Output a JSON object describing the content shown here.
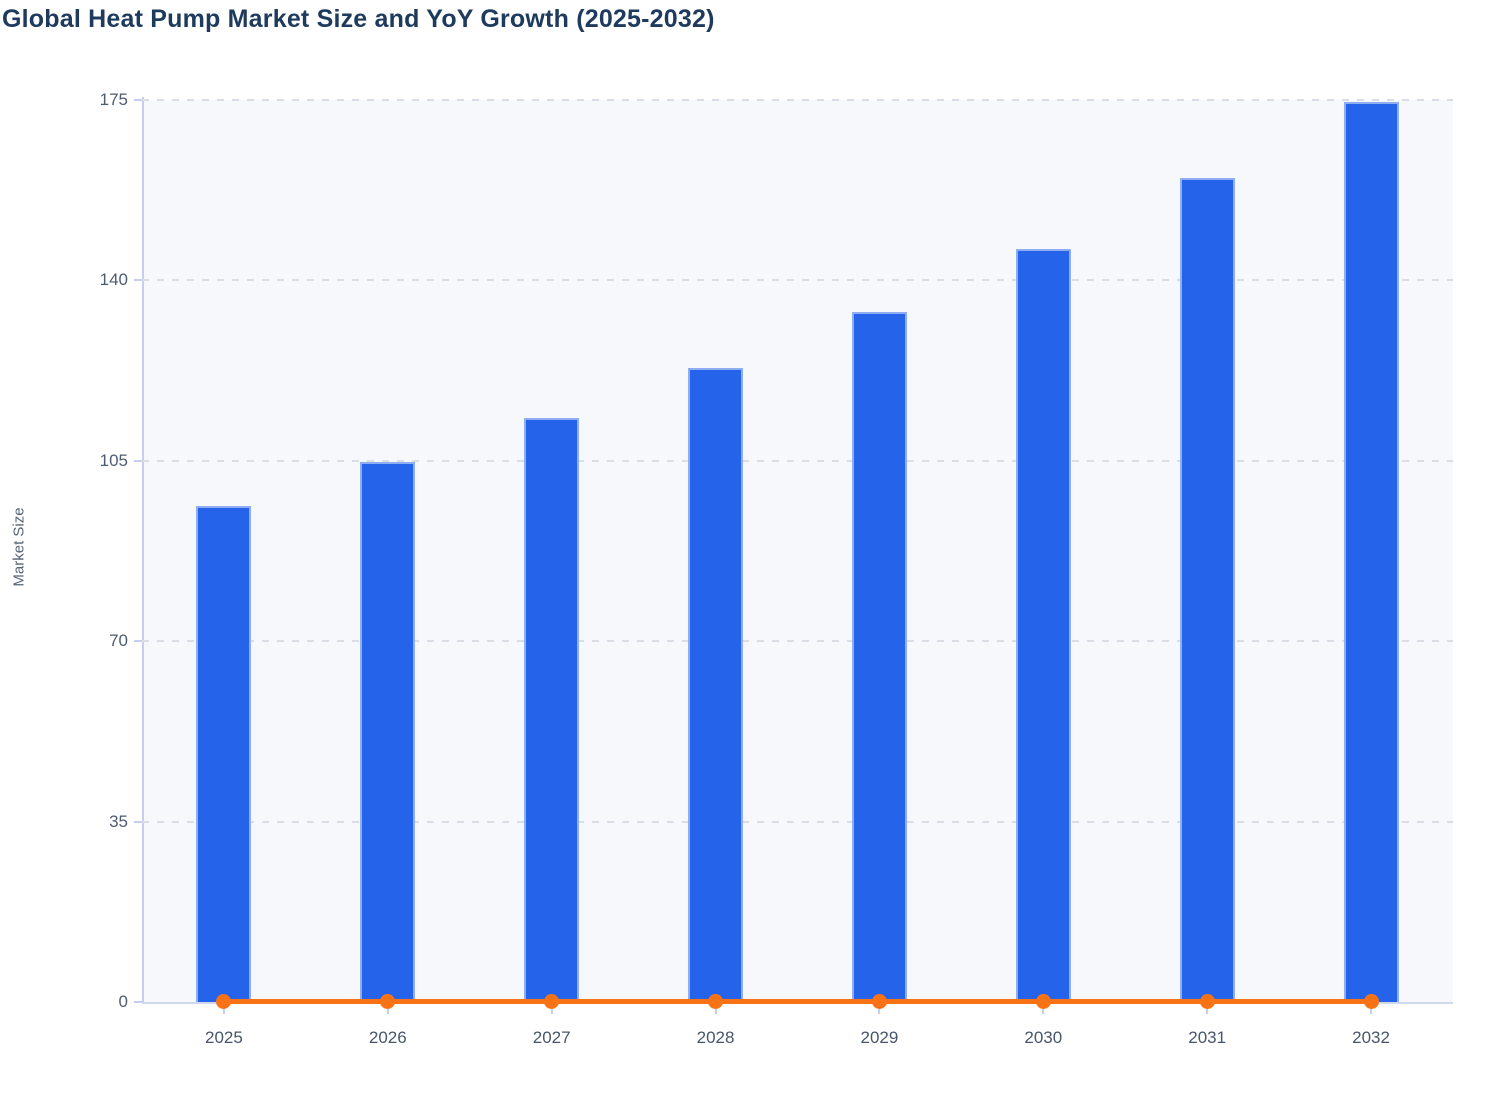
{
  "chart_data": {
    "type": "bar",
    "title": "Global Heat Pump Market Size and YoY Growth (2025-2032)",
    "categories": [
      "2025",
      "2026",
      "2027",
      "2028",
      "2029",
      "2030",
      "2031",
      "2032"
    ],
    "series": [
      {
        "name": "Market Size",
        "type": "bar",
        "color": "#2563eb",
        "border_color": "#8fadf2",
        "values": [
          96.3,
          104.8,
          113.3,
          123.0,
          133.9,
          146.1,
          159.9,
          174.7
        ]
      },
      {
        "name": "YoY Growth",
        "type": "line",
        "color": "#f97316",
        "values": [
          0,
          0,
          0,
          0,
          0,
          0,
          0,
          0
        ]
      }
    ],
    "xlabel": "",
    "ylabel": "Market Size",
    "yticks": [
      0,
      35,
      70,
      105,
      140,
      175
    ],
    "ylim": [
      0,
      175
    ],
    "grid": "horizontal-dashed",
    "legend": "none",
    "plot_bg_color": "#f7f8fb",
    "axis_color": "#c5cef2",
    "grid_color": "#d9dde6",
    "y_tick_label_color": "#4e5c70",
    "x_tick_label_color": "#47566b",
    "title_color": "#1e3a5c"
  }
}
